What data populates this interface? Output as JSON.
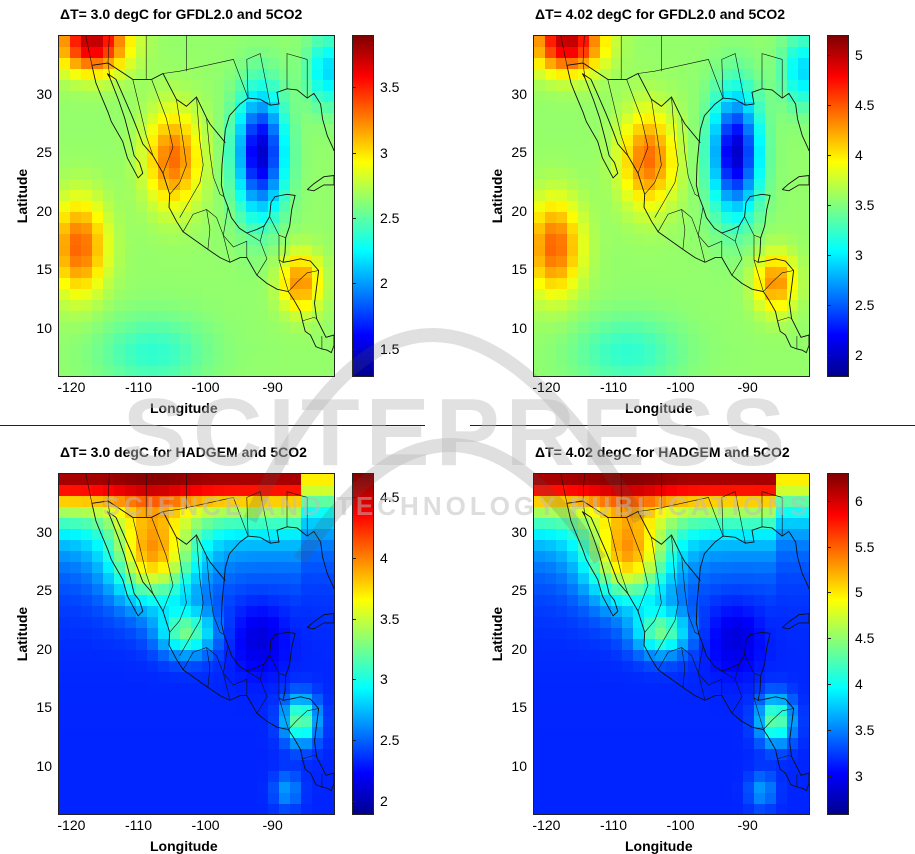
{
  "panels": [
    {
      "title": "ΔT= 3.0 degC for GFDL2.0 and 5CO2",
      "colorbar_ticks": [
        "3.5",
        "3",
        "2.5",
        "2",
        "1.5"
      ],
      "colorbar_range": [
        1.3,
        3.9
      ],
      "pattern": "gfdl"
    },
    {
      "title": "ΔT= 4.02 degC for GFDL2.0 and 5CO2",
      "colorbar_ticks": [
        "5",
        "4.5",
        "4",
        "3.5",
        "3",
        "2.5",
        "2"
      ],
      "colorbar_range": [
        1.8,
        5.2
      ],
      "pattern": "gfdl"
    },
    {
      "title": "ΔT= 3.0 degC for HADGEM and 5CO2",
      "colorbar_ticks": [
        "4.5",
        "4",
        "3.5",
        "3",
        "2.5",
        "2"
      ],
      "colorbar_range": [
        1.9,
        4.7
      ],
      "pattern": "hadgem"
    },
    {
      "title": "ΔT= 4.02 degC for HADGEM and 5CO2",
      "colorbar_ticks": [
        "6",
        "5.5",
        "5",
        "4.5",
        "4",
        "3.5",
        "3"
      ],
      "colorbar_range": [
        2.6,
        6.3
      ],
      "pattern": "hadgem"
    }
  ],
  "axes": {
    "xlabel": "Longitude",
    "ylabel": "Latitude",
    "xticks": [
      "-120",
      "-110",
      "-100",
      "-90"
    ],
    "yticks": [
      "30",
      "25",
      "20",
      "15",
      "10"
    ]
  },
  "watermark": {
    "text": "SCITEPRESS",
    "subtext": "SCIENCE AND TECHNOLOGY PUBLICATIONS"
  },
  "colors": {
    "jet_low": "#00008f",
    "jet_mid": "#7fff7f",
    "jet_high": "#800000"
  }
}
